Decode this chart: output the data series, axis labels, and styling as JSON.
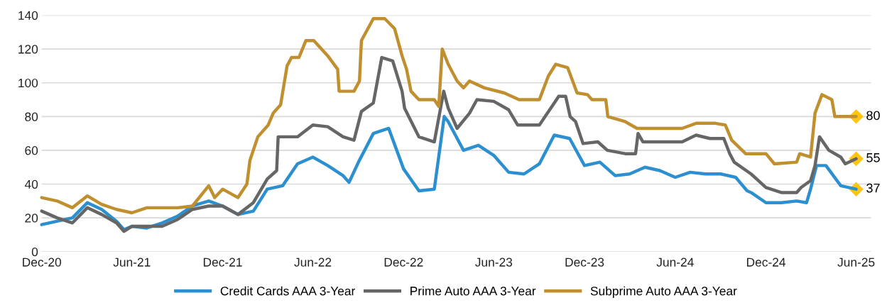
{
  "chart_data": {
    "type": "line",
    "xlim": [
      "2020-12-01",
      "2025-07-01"
    ],
    "xticks": [
      {
        "value": "2020-12-01",
        "label": "Dec-20"
      },
      {
        "value": "2021-06-01",
        "label": "Jun-21"
      },
      {
        "value": "2021-12-01",
        "label": "Dec-21"
      },
      {
        "value": "2022-06-01",
        "label": "Jun-22"
      },
      {
        "value": "2022-12-01",
        "label": "Dec-22"
      },
      {
        "value": "2023-06-01",
        "label": "Jun-23"
      },
      {
        "value": "2023-12-01",
        "label": "Dec-23"
      },
      {
        "value": "2024-06-01",
        "label": "Jun-24"
      },
      {
        "value": "2024-12-01",
        "label": "Dec-24"
      },
      {
        "value": "2025-06-01",
        "label": "Jun-25"
      }
    ],
    "ylim": [
      0,
      140
    ],
    "yticks": [
      0,
      20,
      40,
      60,
      80,
      100,
      120,
      140
    ],
    "grid": "y",
    "legend": "bottom",
    "series": [
      {
        "name": "Credit Cards AAA 3-Year",
        "color": "#2b8fd0",
        "x": [
          "2020-12-01",
          "2021-01-01",
          "2021-02-01",
          "2021-03-03",
          "2021-04-01",
          "2021-05-01",
          "2021-05-16",
          "2021-06-01",
          "2021-07-01",
          "2021-08-01",
          "2021-09-01",
          "2021-10-01",
          "2021-11-03",
          "2021-12-01",
          "2022-01-01",
          "2022-02-01",
          "2022-03-01",
          "2022-04-01",
          "2022-05-01",
          "2022-06-01",
          "2022-07-01",
          "2022-08-01",
          "2022-08-13",
          "2022-09-01",
          "2022-10-01",
          "2022-11-01",
          "2022-12-01",
          "2023-01-01",
          "2023-02-01",
          "2023-02-21",
          "2023-03-01",
          "2023-04-01",
          "2023-05-01",
          "2023-06-01",
          "2023-07-01",
          "2023-08-01",
          "2023-09-01",
          "2023-10-01",
          "2023-11-01",
          "2023-12-01",
          "2024-01-01",
          "2024-02-01",
          "2024-03-01",
          "2024-04-01",
          "2024-05-01",
          "2024-06-01",
          "2024-07-01",
          "2024-08-01",
          "2024-09-01",
          "2024-10-01",
          "2024-10-24",
          "2024-11-01",
          "2024-12-01",
          "2025-01-01",
          "2025-02-01",
          "2025-02-21",
          "2025-03-01",
          "2025-03-13",
          "2025-04-01",
          "2025-05-01",
          "2025-06-01"
        ],
        "values": [
          16,
          18,
          20,
          29,
          25,
          18,
          13,
          15,
          14,
          17,
          21,
          27,
          30,
          27,
          22,
          24,
          37,
          39,
          52,
          56,
          51,
          45,
          41,
          53,
          70,
          73,
          49,
          36,
          37,
          80,
          77,
          60,
          63,
          57,
          47,
          46,
          52,
          69,
          67,
          51,
          53,
          45,
          46,
          50,
          48,
          44,
          47,
          46,
          46,
          44,
          36,
          35,
          29,
          29,
          30,
          29,
          37,
          51,
          51,
          39,
          37
        ]
      },
      {
        "name": "Prime Auto AAA 3-Year",
        "color": "#666666",
        "x": [
          "2020-12-01",
          "2021-01-01",
          "2021-02-01",
          "2021-03-03",
          "2021-04-01",
          "2021-05-01",
          "2021-05-16",
          "2021-06-01",
          "2021-07-01",
          "2021-08-01",
          "2021-09-01",
          "2021-10-01",
          "2021-11-03",
          "2021-12-01",
          "2022-01-01",
          "2022-02-01",
          "2022-03-01",
          "2022-03-20",
          "2022-03-23",
          "2022-05-01",
          "2022-06-01",
          "2022-07-01",
          "2022-08-01",
          "2022-08-23",
          "2022-09-07",
          "2022-10-01",
          "2022-10-18",
          "2022-11-09",
          "2022-11-28",
          "2022-12-03",
          "2023-01-01",
          "2023-02-01",
          "2023-02-20",
          "2023-03-01",
          "2023-03-19",
          "2023-04-13",
          "2023-04-28",
          "2023-06-01",
          "2023-07-01",
          "2023-07-19",
          "2023-09-01",
          "2023-10-01",
          "2023-10-10",
          "2023-10-24",
          "2023-11-02",
          "2023-11-13",
          "2023-11-28",
          "2023-12-28",
          "2024-01-16",
          "2024-02-21",
          "2024-03-13",
          "2024-03-18",
          "2024-03-28",
          "2024-06-15",
          "2024-07-13",
          "2024-08-10",
          "2024-09-07",
          "2024-09-19",
          "2024-09-28",
          "2024-11-01",
          "2024-12-01",
          "2025-01-01",
          "2025-02-01",
          "2025-02-10",
          "2025-03-01",
          "2025-03-10",
          "2025-03-19",
          "2025-04-07",
          "2025-05-01",
          "2025-05-10",
          "2025-06-01"
        ],
        "values": [
          24,
          20,
          17,
          26,
          22,
          17,
          12,
          15,
          15,
          15,
          19,
          25,
          27,
          27,
          22,
          29,
          43,
          48,
          68,
          68,
          75,
          74,
          68,
          66,
          83,
          88,
          115,
          113,
          95,
          85,
          68,
          65,
          95,
          85,
          73,
          82,
          90,
          89,
          84,
          75,
          75,
          88,
          92,
          92,
          80,
          77,
          64,
          65,
          60,
          58,
          58,
          70,
          65,
          65,
          69,
          67,
          67,
          58,
          53,
          46,
          38,
          35,
          35,
          38,
          42,
          51,
          68,
          60,
          56,
          52,
          55
        ]
      },
      {
        "name": "Subprime Auto AAA 3-Year",
        "color": "#c08f2f",
        "x": [
          "2020-12-01",
          "2021-01-01",
          "2021-02-01",
          "2021-03-03",
          "2021-04-01",
          "2021-05-01",
          "2021-06-01",
          "2021-07-01",
          "2021-08-01",
          "2021-09-01",
          "2021-10-01",
          "2021-11-03",
          "2021-11-15",
          "2021-12-01",
          "2022-01-01",
          "2022-01-19",
          "2022-01-25",
          "2022-02-10",
          "2022-03-03",
          "2022-03-13",
          "2022-03-28",
          "2022-04-10",
          "2022-04-19",
          "2022-05-04",
          "2022-05-18",
          "2022-06-03",
          "2022-07-01",
          "2022-07-21",
          "2022-07-24",
          "2022-08-23",
          "2022-09-03",
          "2022-09-07",
          "2022-10-01",
          "2022-10-24",
          "2022-11-13",
          "2022-11-28",
          "2022-12-07",
          "2022-12-16",
          "2023-01-01",
          "2023-02-01",
          "2023-02-10",
          "2023-02-17",
          "2023-03-01",
          "2023-03-19",
          "2023-04-01",
          "2023-04-13",
          "2023-05-13",
          "2023-06-22",
          "2023-07-22",
          "2023-09-01",
          "2023-09-19",
          "2023-10-04",
          "2023-10-28",
          "2023-11-16",
          "2023-12-07",
          "2023-12-16",
          "2024-01-13",
          "2024-01-17",
          "2024-02-21",
          "2024-03-16",
          "2024-06-15",
          "2024-07-13",
          "2024-08-21",
          "2024-09-10",
          "2024-09-23",
          "2024-10-21",
          "2024-12-01",
          "2024-12-18",
          "2025-02-01",
          "2025-02-07",
          "2025-03-01",
          "2025-03-10",
          "2025-03-24",
          "2025-04-13",
          "2025-04-19",
          "2025-06-01"
        ],
        "values": [
          32,
          30,
          26,
          33,
          28,
          25,
          23,
          26,
          26,
          26,
          27,
          39,
          32,
          37,
          32,
          40,
          54,
          68,
          75,
          82,
          87,
          110,
          115,
          115,
          125,
          125,
          116,
          108,
          95,
          95,
          101,
          125,
          138,
          138,
          132,
          116,
          108,
          95,
          90,
          90,
          86,
          120,
          111,
          101,
          97,
          101,
          97,
          94,
          90,
          90,
          104,
          111,
          109,
          94,
          93,
          90,
          90,
          80,
          77,
          73,
          73,
          76,
          76,
          75,
          66,
          58,
          58,
          52,
          53,
          58,
          56,
          82,
          93,
          90,
          80,
          80
        ]
      },
      {
        "type": "scatter",
        "marker": "diamond",
        "color": "#ffc510",
        "x": [
          "2025-06-01",
          "2025-06-01",
          "2025-06-01"
        ],
        "values": [
          80,
          55,
          37
        ],
        "value_labels": [
          "80",
          "55",
          "37"
        ]
      }
    ]
  }
}
